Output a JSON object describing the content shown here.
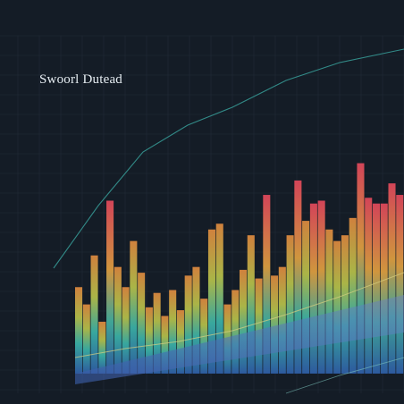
{
  "chart_data": {
    "type": "bar",
    "title": "Swoorl Dutead",
    "values": [
      60,
      48,
      82,
      36,
      120,
      74,
      60,
      92,
      70,
      46,
      56,
      40,
      58,
      44,
      68,
      74,
      52,
      100,
      104,
      48,
      58,
      72,
      96,
      66,
      124,
      68,
      74,
      96,
      134,
      106,
      118,
      120,
      100,
      92,
      96,
      108,
      146,
      122,
      118,
      118,
      132,
      124
    ],
    "ylim": [
      0,
      160
    ],
    "grid": true,
    "colors": {
      "background": "#141c26",
      "grid": "#2a3645",
      "low": "#2f6fb0",
      "mid": "#3bb3a8",
      "high": "#d8c24a",
      "peak": "#e2673f",
      "top": "#e34a5c"
    }
  }
}
